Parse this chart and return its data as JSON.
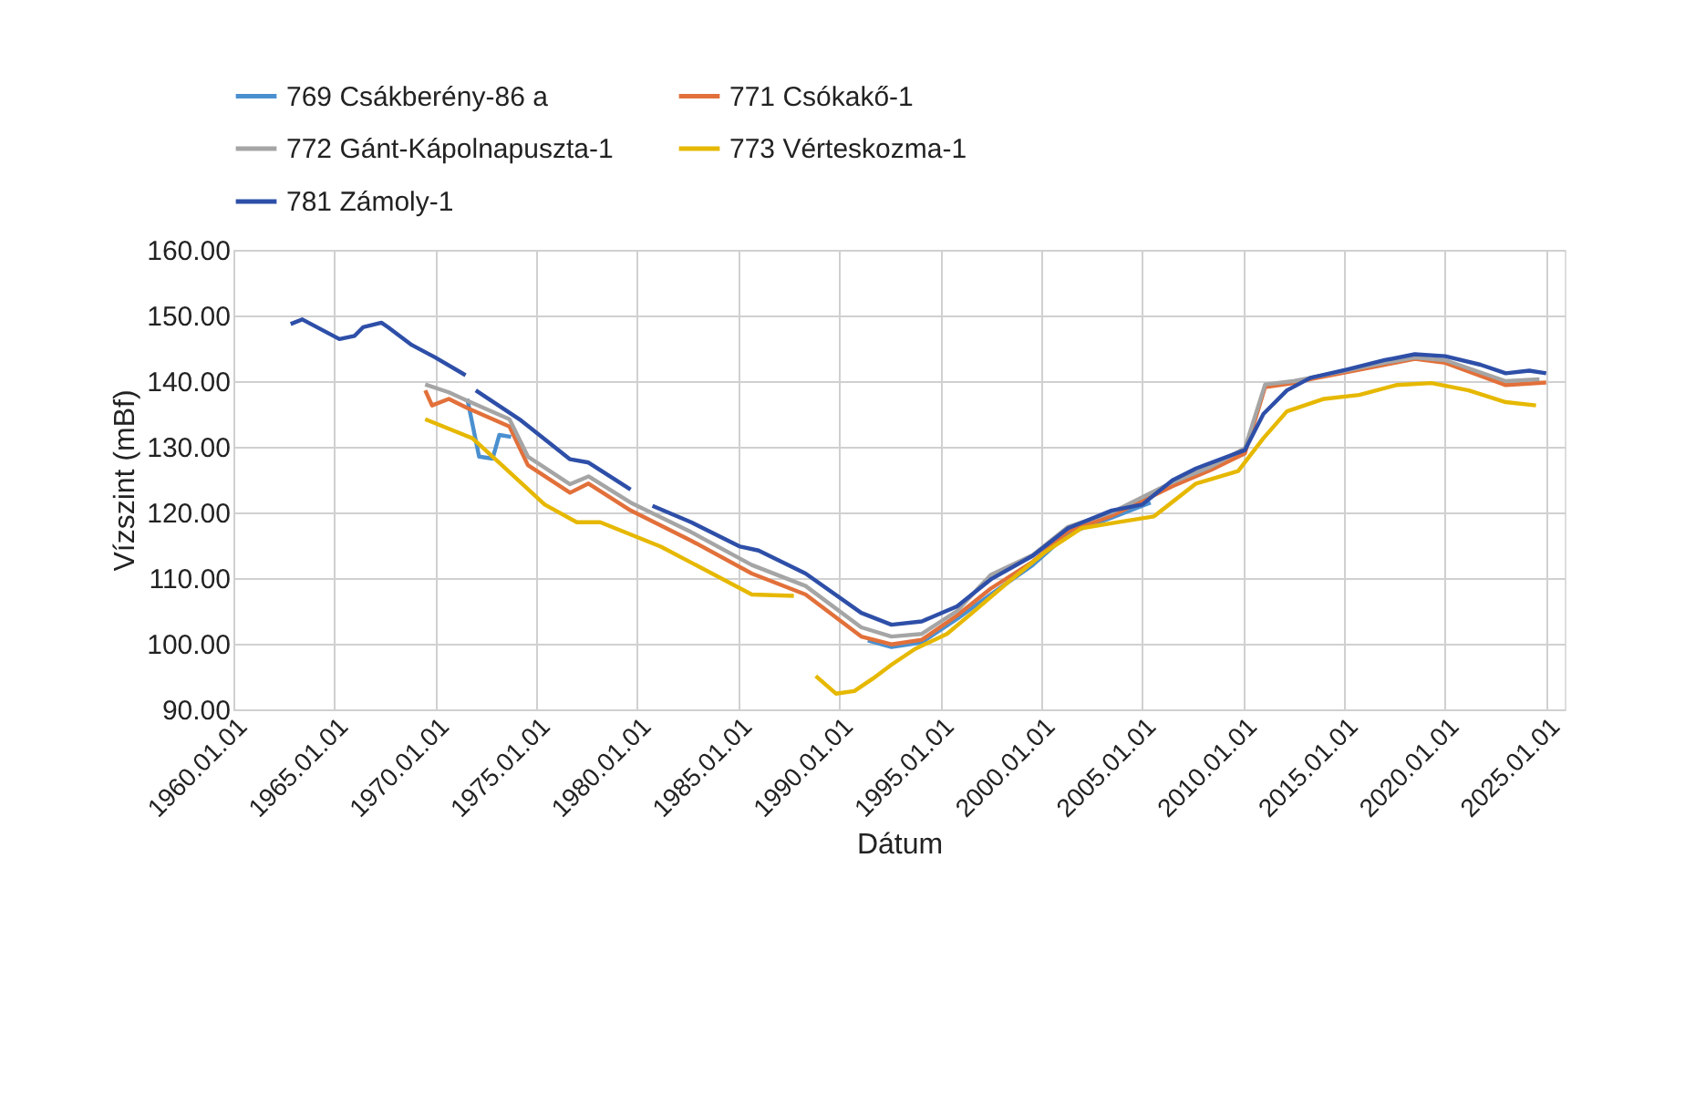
{
  "chart_data": {
    "type": "line",
    "xlabel": "Dátum",
    "ylabel": "Vízszint (mBf)",
    "xlim": [
      "1960-01-01",
      "2025-12-01"
    ],
    "xticks": [
      {
        "value": "1960-01-01",
        "label": "1960.01.01"
      },
      {
        "value": "1965-01-01",
        "label": "1965.01.01"
      },
      {
        "value": "1970-01-01",
        "label": "1970.01.01"
      },
      {
        "value": "1975-01-01",
        "label": "1975.01.01"
      },
      {
        "value": "1980-01-01",
        "label": "1980.01.01"
      },
      {
        "value": "1985-01-01",
        "label": "1985.01.01"
      },
      {
        "value": "1990-01-01",
        "label": "1990.01.01"
      },
      {
        "value": "1995-01-01",
        "label": "1995.01.01"
      },
      {
        "value": "2000-01-01",
        "label": "2000.01.01"
      },
      {
        "value": "2005-01-01",
        "label": "2005.01.01"
      },
      {
        "value": "2010-01-01",
        "label": "2010.01.01"
      },
      {
        "value": "2015-01-01",
        "label": "2015.01.01"
      },
      {
        "value": "2020-01-01",
        "label": "2020.01.01"
      },
      {
        "value": "2025-01-01",
        "label": "2025.01.01"
      }
    ],
    "ylim": [
      90,
      160
    ],
    "yticks": [
      {
        "value": 90,
        "label": "90.00"
      },
      {
        "value": 100,
        "label": "100.00"
      },
      {
        "value": 110,
        "label": "110.00"
      },
      {
        "value": 120,
        "label": "120.00"
      },
      {
        "value": 130,
        "label": "130.00"
      },
      {
        "value": 140,
        "label": "140.00"
      },
      {
        "value": 150,
        "label": "150.00"
      },
      {
        "value": 160,
        "label": "160.00"
      }
    ],
    "grid": true,
    "legend": "top",
    "series": [
      {
        "name": "769 Csákberény-86 a",
        "color": "#4a90d0",
        "x": [
          "1971-08",
          "1972-03",
          "1972-11",
          "1973-03",
          "1973-10",
          "1980-01",
          "1991-06",
          "1992-08",
          "1994-02",
          "1995-11",
          "1997-07",
          "1999-08",
          "2001-05",
          "2003-07",
          "2005-06"
        ],
        "values": [
          137.3,
          128.5,
          128.2,
          131.8,
          131.5,
          null,
          100.5,
          99.5,
          100.2,
          103.8,
          107.5,
          112.0,
          116.8,
          119.2,
          121.5
        ]
      },
      {
        "name": "771 Csókakő-1",
        "color": "#e2703a",
        "x": [
          "1969-07",
          "1969-11",
          "1970-09",
          "1971-08",
          "1973-09",
          "1974-08",
          "1976-09",
          "1977-08",
          "1979-09",
          "1982-09",
          "1985-09",
          "1988-05",
          "1991-02",
          "1992-08",
          "1994-02",
          "1995-11",
          "1997-07",
          "1999-08",
          "2001-05",
          "2003-07",
          "2006-07",
          "2008-06",
          "2010-02",
          "2011-02",
          "2012-07",
          "2013-05",
          "2017-01",
          "2018-07",
          "2020-01",
          "2023-01",
          "2025-01"
        ],
        "values": [
          138.6,
          136.3,
          137.3,
          135.9,
          133.1,
          127.2,
          123.0,
          124.4,
          120.3,
          115.7,
          110.7,
          107.5,
          101.1,
          99.9,
          100.6,
          104.3,
          108.4,
          112.5,
          117.1,
          119.5,
          124.0,
          126.5,
          129.0,
          139.1,
          139.7,
          140.3,
          142.5,
          143.4,
          142.8,
          139.4,
          139.8
        ]
      },
      {
        "name": "772 Gánt-Kápolnapuszta-1",
        "color": "#a5a5a5",
        "x": [
          "1969-07",
          "1970-09",
          "1971-08",
          "1973-09",
          "1974-08",
          "1976-09",
          "1977-08",
          "1979-09",
          "1982-09",
          "1985-09",
          "1988-05",
          "1991-02",
          "1992-08",
          "1994-02",
          "1995-11",
          "1997-07",
          "1999-08",
          "2001-05",
          "2003-07",
          "2006-07",
          "2008-06",
          "2010-02",
          "2011-02",
          "2012-07",
          "2013-05",
          "2017-01",
          "2018-07",
          "2020-01",
          "2023-01",
          "2024-09"
        ],
        "values": [
          139.5,
          138.3,
          137.0,
          134.2,
          128.5,
          124.3,
          125.5,
          121.5,
          117.0,
          112.0,
          108.8,
          102.5,
          101.1,
          101.5,
          105.0,
          110.5,
          113.5,
          117.8,
          120.0,
          124.6,
          127.0,
          129.8,
          139.5,
          140.0,
          140.5,
          142.8,
          143.6,
          143.2,
          140.0,
          140.3
        ]
      },
      {
        "name": "773 Vérteskozma-1",
        "color": "#e6b800",
        "x": [
          "1969-07",
          "1971-11",
          "1972-11",
          "1975-06",
          "1977-01",
          "1978-03",
          "1981-03",
          "1985-09",
          "1987-10",
          "1988-05",
          "1988-11",
          "1989-11",
          "1990-10",
          "1991-09",
          "1992-08",
          "1993-10",
          "1995-05",
          "1996-08",
          "1998-05",
          "2000-03",
          "2002-01",
          "2003-10",
          "2005-08",
          "2007-09",
          "2009-10",
          "2011-01",
          "2012-03",
          "2014-01",
          "2015-10",
          "2017-08",
          "2019-05",
          "2021-03",
          "2023-01",
          "2024-07"
        ],
        "values": [
          134.2,
          131.3,
          128.5,
          121.2,
          118.5,
          118.5,
          114.8,
          107.5,
          107.3,
          null,
          95.1,
          92.4,
          92.8,
          94.7,
          96.8,
          99.2,
          101.5,
          104.7,
          109.3,
          113.9,
          117.6,
          118.5,
          119.4,
          124.4,
          126.3,
          131.3,
          135.4,
          137.3,
          137.9,
          139.4,
          139.7,
          138.6,
          136.8,
          136.3
        ]
      },
      {
        "name": "781 Zámoly-1",
        "color": "#2e4fa8",
        "x": [
          "1962-11",
          "1963-06",
          "1965-04",
          "1966-01",
          "1966-06",
          "1967-05",
          "1967-09",
          "1968-11",
          "1970-01",
          "1971-07",
          "1971-10",
          "1972-01",
          "1974-04",
          "1976-09",
          "1977-08",
          "1979-09",
          "1980-03",
          "1980-10",
          "1982-09",
          "1985-02",
          "1986-01",
          "1988-05",
          "1991-02",
          "1992-08",
          "1994-02",
          "1995-11",
          "1997-07",
          "1999-08",
          "2001-05",
          "2003-07",
          "2005-01",
          "2006-07",
          "2007-09",
          "2010-02",
          "2011-01",
          "2012-03",
          "2013-05",
          "2015-03",
          "2017-01",
          "2018-07",
          "2020-01",
          "2021-10",
          "2023-01",
          "2024-03",
          "2025-01"
        ],
        "values": [
          148.7,
          149.4,
          146.4,
          146.9,
          148.2,
          148.9,
          148.2,
          145.5,
          143.6,
          140.9,
          null,
          138.6,
          134.0,
          128.1,
          127.6,
          123.5,
          null,
          121.0,
          118.5,
          114.8,
          114.2,
          110.7,
          104.7,
          102.9,
          103.4,
          105.7,
          109.8,
          113.4,
          117.6,
          120.3,
          121.2,
          124.9,
          126.7,
          129.5,
          135.0,
          138.6,
          140.5,
          141.8,
          143.2,
          144.1,
          143.8,
          142.5,
          141.2,
          141.6,
          141.2
        ]
      }
    ]
  }
}
